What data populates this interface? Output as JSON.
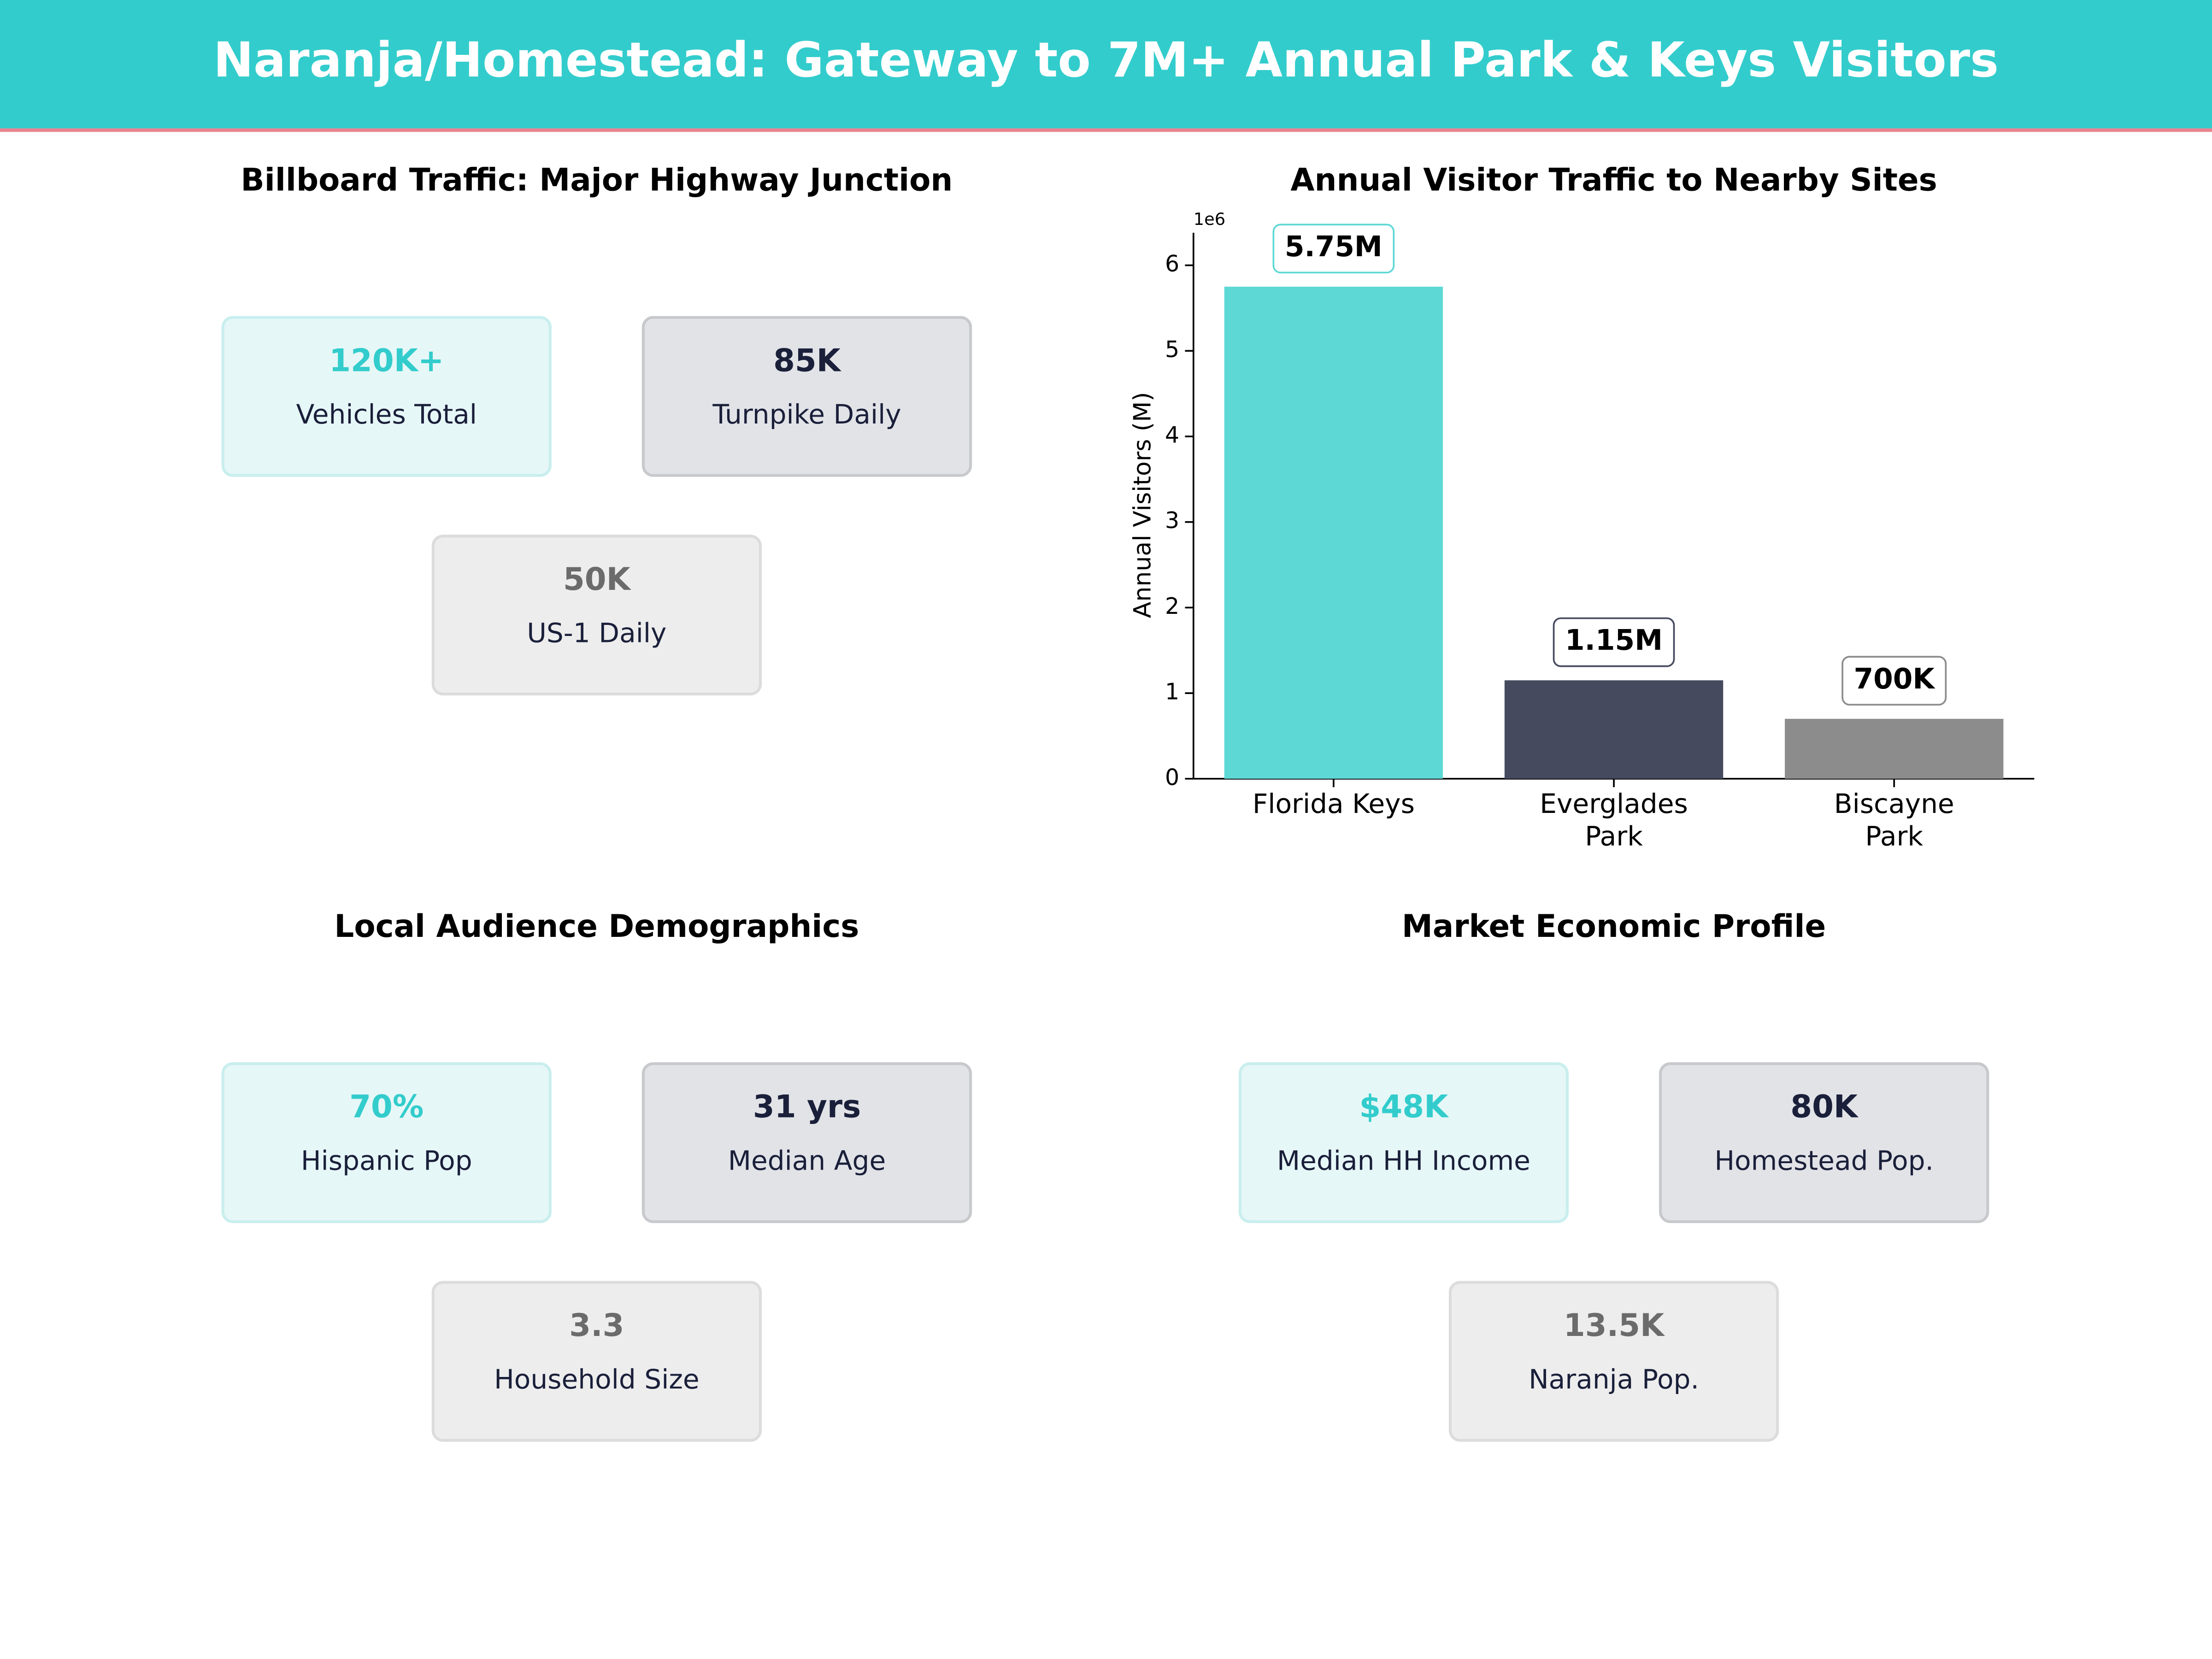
{
  "header": {
    "title": "Naranja/Homestead: Gateway to 7M+ Annual Park & Keys Visitors"
  },
  "kpi_panels": [
    {
      "title": "Billboard Traffic: Major Highway Junction",
      "cards": [
        {
          "value": "120K+",
          "label": "Vehicles Total"
        },
        {
          "value": "85K",
          "label": "Turnpike Daily"
        },
        {
          "value": "50K",
          "label": "US-1 Daily"
        }
      ]
    },
    {
      "title": "Local Audience Demographics",
      "cards": [
        {
          "value": "70%",
          "label": "Hispanic Pop"
        },
        {
          "value": "31 yrs",
          "label": "Median Age"
        },
        {
          "value": "3.3",
          "label": "Household Size"
        }
      ]
    },
    {
      "title": "Market Economic Profile",
      "cards": [
        {
          "value": "$48K",
          "label": "Median HH Income"
        },
        {
          "value": "80K",
          "label": "Homestead Pop."
        },
        {
          "value": "13.5K",
          "label": "Naranja Pop."
        }
      ]
    }
  ],
  "chart_data": {
    "type": "bar",
    "title": "Annual Visitor Traffic to Nearby Sites",
    "y_label": "Annual Visitors (M)",
    "y_offset_label": "1e6",
    "categories": [
      "Florida Keys",
      "Everglades\nPark",
      "Biscayne\nPark"
    ],
    "values": [
      5750000,
      1150000,
      700000
    ],
    "value_labels": [
      "5.75M",
      "1.15M",
      "700K"
    ],
    "colors": [
      "#5dd8d5",
      "#464a5f",
      "#8c8c8c"
    ],
    "ylim": [
      0,
      6380000
    ],
    "yticks": [
      {
        "value": 0,
        "label": "0"
      },
      {
        "value": 1000000,
        "label": "1"
      },
      {
        "value": 2000000,
        "label": "2"
      },
      {
        "value": 3000000,
        "label": "3"
      },
      {
        "value": 4000000,
        "label": "4"
      },
      {
        "value": 5000000,
        "label": "5"
      },
      {
        "value": 6000000,
        "label": "6"
      }
    ]
  }
}
